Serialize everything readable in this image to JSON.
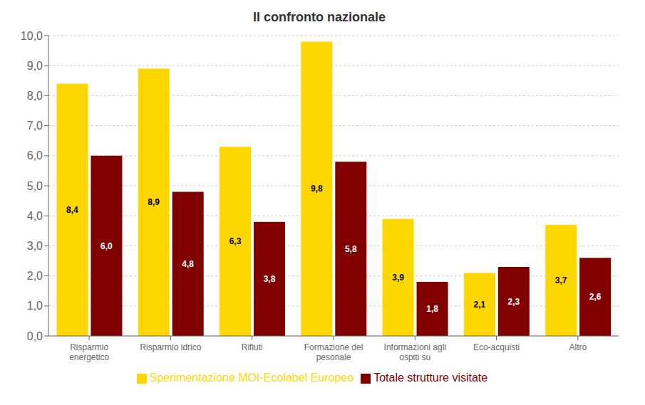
{
  "chart_data": {
    "type": "bar",
    "title": "Il confronto nazionale",
    "categories": [
      "Risparmio\nenergetico",
      "Risparmio idrico",
      "Rifiuti",
      "Formazione del\npesonale",
      "Informazioni agli\nospiti su",
      "Eco-acquisti",
      "Altro"
    ],
    "series": [
      {
        "name": "Sperimentazione MOI-Ecolabel Europeo",
        "color": "#FFD700",
        "values": [
          8.4,
          8.9,
          6.3,
          9.8,
          3.9,
          2.1,
          3.7
        ],
        "value_labels": [
          "8,4",
          "8,9",
          "6,3",
          "9,8",
          "3,9",
          "2,1",
          "3,7"
        ]
      },
      {
        "name": "Totale strutture visitate",
        "color": "#800000",
        "values": [
          6.0,
          4.8,
          3.8,
          5.8,
          1.8,
          2.3,
          2.6
        ],
        "value_labels": [
          "6,0",
          "4,8",
          "3,8",
          "5,8",
          "1,8",
          "2,3",
          "2,6"
        ]
      }
    ],
    "ylim": [
      0,
      10
    ],
    "yticks": [
      {
        "value": 0,
        "label": "0,0"
      },
      {
        "value": 1,
        "label": "1,0"
      },
      {
        "value": 2,
        "label": "2,0"
      },
      {
        "value": 3,
        "label": "3,0"
      },
      {
        "value": 4,
        "label": "4,0"
      },
      {
        "value": 5,
        "label": "5,0"
      },
      {
        "value": 6,
        "label": "6,0"
      },
      {
        "value": 7,
        "label": "7,0"
      },
      {
        "value": 8,
        "label": "8,0"
      },
      {
        "value": 9,
        "label": "9,0"
      },
      {
        "value": 10,
        "label": "10,0"
      }
    ],
    "grid": true,
    "legend": "bottom",
    "data_labels": true
  }
}
